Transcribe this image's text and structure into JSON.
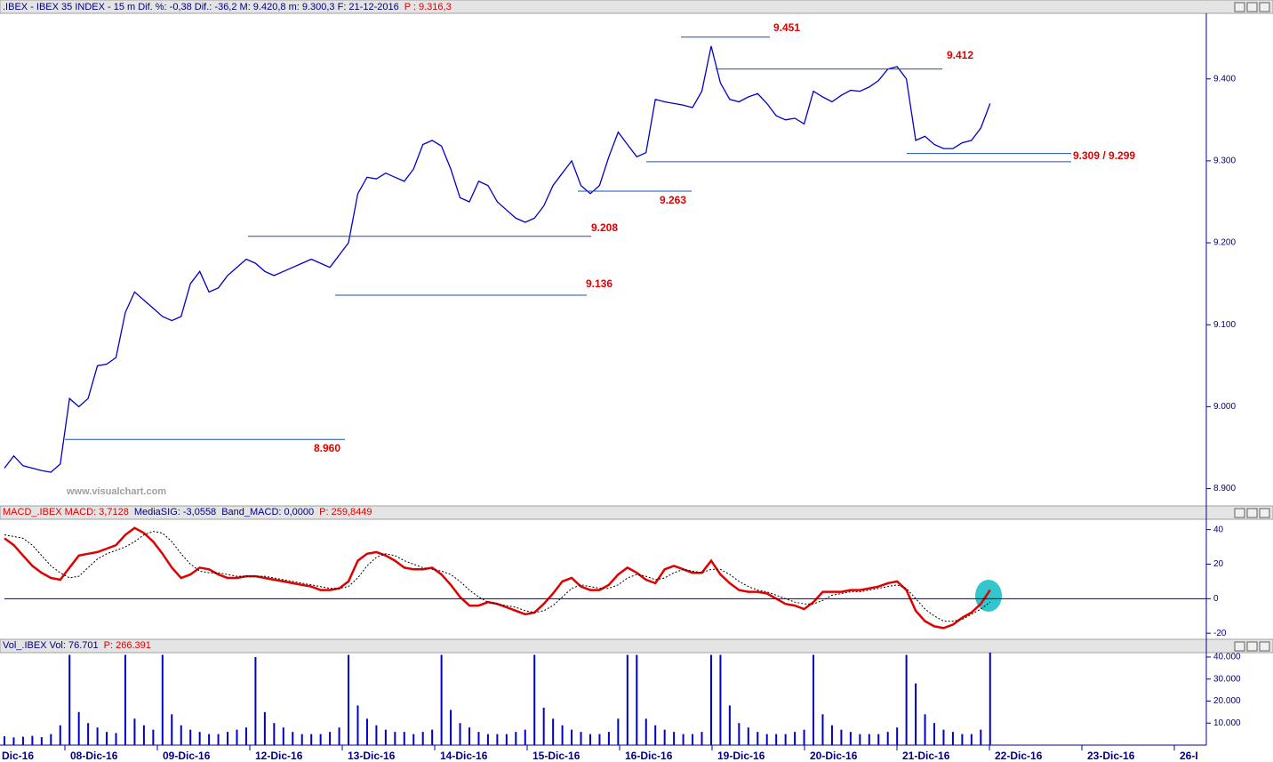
{
  "chart_data": [
    {
      "type": "line",
      "header": ".IBEX - IBEX 35 INDEX -  15 m  Dif. %: -0,38  Dif.: -36,2  M: 9.420,8  m: 9.300,3  F: 21-12-2016",
      "header_price": "P : 9.316,3",
      "watermark": "www.visualchart.com",
      "series": [
        {
          "color": "#0000c8",
          "values": [
            8925,
            8940,
            8928,
            8925,
            8922,
            8920,
            8930,
            9010,
            9000,
            9010,
            9050,
            9052,
            9060,
            9115,
            9140,
            9130,
            9120,
            9110,
            9105,
            9110,
            9150,
            9165,
            9140,
            9145,
            9160,
            9170,
            9180,
            9175,
            9165,
            9160,
            9165,
            9170,
            9175,
            9180,
            9175,
            9170,
            9185,
            9200,
            9260,
            9280,
            9278,
            9285,
            9280,
            9275,
            9290,
            9320,
            9325,
            9318,
            9290,
            9255,
            9250,
            9275,
            9270,
            9250,
            9240,
            9230,
            9225,
            9230,
            9245,
            9270,
            9285,
            9300,
            9270,
            9260,
            9270,
            9305,
            9335,
            9320,
            9305,
            9310,
            9375,
            9372,
            9370,
            9368,
            9365,
            9385,
            9440,
            9395,
            9375,
            9372,
            9378,
            9382,
            9370,
            9355,
            9350,
            9352,
            9345,
            9385,
            9378,
            9372,
            9380,
            9386,
            9385,
            9390,
            9398,
            9412,
            9415,
            9400,
            9325,
            9330,
            9320,
            9315,
            9315,
            9322,
            9325,
            9340,
            9370
          ]
        }
      ],
      "ylim": [
        8880,
        9480
      ],
      "yticks": [
        {
          "value": 9400,
          "label": "9.400"
        },
        {
          "value": 9300,
          "label": "9.300"
        },
        {
          "value": 9200,
          "label": "9.200"
        },
        {
          "value": 9100,
          "label": "9.100"
        },
        {
          "value": 9000,
          "label": "9.000"
        },
        {
          "value": 8900,
          "label": "8.900"
        }
      ],
      "levels": [
        {
          "values": [
            9451
          ],
          "label": "9.451"
        },
        {
          "values": [
            9412
          ],
          "label": "9.412"
        },
        {
          "values": [
            9309,
            9299
          ],
          "label": "9.309 / 9.299"
        },
        {
          "values": [
            9263
          ],
          "label": "9.263"
        },
        {
          "values": [
            9208
          ],
          "label": "9.208"
        },
        {
          "values": [
            9136
          ],
          "label": "9.136"
        },
        {
          "values": [
            8960
          ],
          "label": "8.960"
        }
      ]
    },
    {
      "type": "line",
      "header": [
        "MACD_.IBEX MACD: 3,7128",
        "MediaSIG: -3,0558",
        "Band_MACD: 0,0000",
        "P: 259,8449"
      ],
      "band": 0,
      "series": [
        {
          "color": "#e00000",
          "values": [
            35,
            31,
            25,
            19,
            15,
            12,
            11,
            18,
            25,
            26,
            27,
            29,
            31,
            37,
            41,
            38,
            33,
            26,
            18,
            12,
            14,
            18,
            17,
            14,
            12,
            12,
            13,
            13,
            12,
            11,
            10,
            9,
            8,
            7,
            5,
            5,
            6,
            10,
            22,
            26,
            27,
            25,
            22,
            18,
            17,
            17,
            18,
            14,
            8,
            1,
            -4,
            -4,
            -2,
            -3,
            -5,
            -7,
            -9,
            -8,
            -3,
            3,
            10,
            12,
            7,
            5,
            5,
            8,
            14,
            18,
            15,
            11,
            9,
            17,
            19,
            17,
            15,
            15,
            22,
            14,
            9,
            5,
            4,
            4,
            3,
            0,
            -3,
            -4,
            -6,
            -2,
            4,
            4,
            4,
            5,
            5,
            6,
            7,
            9,
            10,
            5,
            -7,
            -13,
            -16,
            -17,
            -15,
            -11,
            -8,
            -3,
            5
          ]
        },
        {
          "color": "#000000",
          "values": [
            37,
            36,
            35,
            31,
            25,
            19,
            15,
            12,
            13,
            18,
            23,
            26,
            28,
            30,
            33,
            37,
            39,
            38,
            33,
            26,
            20,
            16,
            15,
            15,
            14,
            13,
            13,
            13,
            13,
            12,
            11,
            10,
            9,
            8,
            7,
            6,
            6,
            7,
            12,
            19,
            24,
            26,
            25,
            22,
            20,
            18,
            17,
            16,
            14,
            10,
            5,
            1,
            -2,
            -3,
            -4,
            -5,
            -7,
            -8,
            -7,
            -4,
            1,
            6,
            8,
            7,
            6,
            6,
            8,
            12,
            14,
            13,
            11,
            12,
            15,
            17,
            16,
            15,
            17,
            17,
            14,
            10,
            7,
            5,
            4,
            2,
            0,
            -2,
            -3,
            -3,
            -1,
            2,
            3,
            4,
            4,
            5,
            6,
            7,
            8,
            6,
            0,
            -6,
            -10,
            -13,
            -13,
            -12,
            -9,
            -6,
            -2
          ]
        }
      ],
      "ylim": [
        -23,
        46
      ],
      "yticks": [
        40,
        20,
        0,
        -20
      ]
    },
    {
      "type": "bar",
      "header": [
        "Vol_.IBEX Vol: 76.701",
        "P: 266.391"
      ],
      "color": "#0000c8",
      "values": [
        4000,
        3500,
        3800,
        4200,
        3600,
        5000,
        9000,
        41000,
        15000,
        10000,
        8000,
        6000,
        5500,
        41000,
        12000,
        9000,
        7000,
        41000,
        14000,
        9000,
        7000,
        6000,
        5000,
        5000,
        6000,
        7000,
        8000,
        40000,
        15000,
        10000,
        8000,
        6000,
        5000,
        5000,
        5000,
        6000,
        8000,
        41000,
        18000,
        12000,
        9000,
        7000,
        6000,
        6000,
        5000,
        6000,
        7000,
        41000,
        16000,
        10000,
        8000,
        6000,
        5000,
        5000,
        5000,
        6000,
        7000,
        41000,
        17000,
        12000,
        9000,
        7000,
        6000,
        5000,
        5000,
        6000,
        12000,
        41000,
        41000,
        12000,
        9000,
        7000,
        6000,
        5000,
        5000,
        6000,
        41000,
        41000,
        18000,
        10000,
        8000,
        6000,
        5000,
        5000,
        5000,
        6000,
        7000,
        41000,
        14000,
        9000,
        7000,
        6000,
        5000,
        5000,
        5000,
        6000,
        8000,
        41000,
        28000,
        14000,
        10000,
        7000,
        6000,
        5000,
        5000,
        7000,
        42000
      ],
      "ylim": [
        0,
        42000
      ],
      "yticks": [
        {
          "value": 40000,
          "label": "40.000"
        },
        {
          "value": 30000,
          "label": "30.000"
        },
        {
          "value": 20000,
          "label": "20.000"
        },
        {
          "value": 10000,
          "label": "10.000"
        }
      ],
      "x_tick_labels": [
        "Dic-16",
        "08-Dic-16",
        "09-Dic-16",
        "12-Dic-16",
        "13-Dic-16",
        "14-Dic-16",
        "15-Dic-16",
        "16-Dic-16",
        "19-Dic-16",
        "20-Dic-16",
        "21-Dic-16",
        "22-Dic-16",
        "23-Dic-16",
        "26-I"
      ]
    }
  ]
}
